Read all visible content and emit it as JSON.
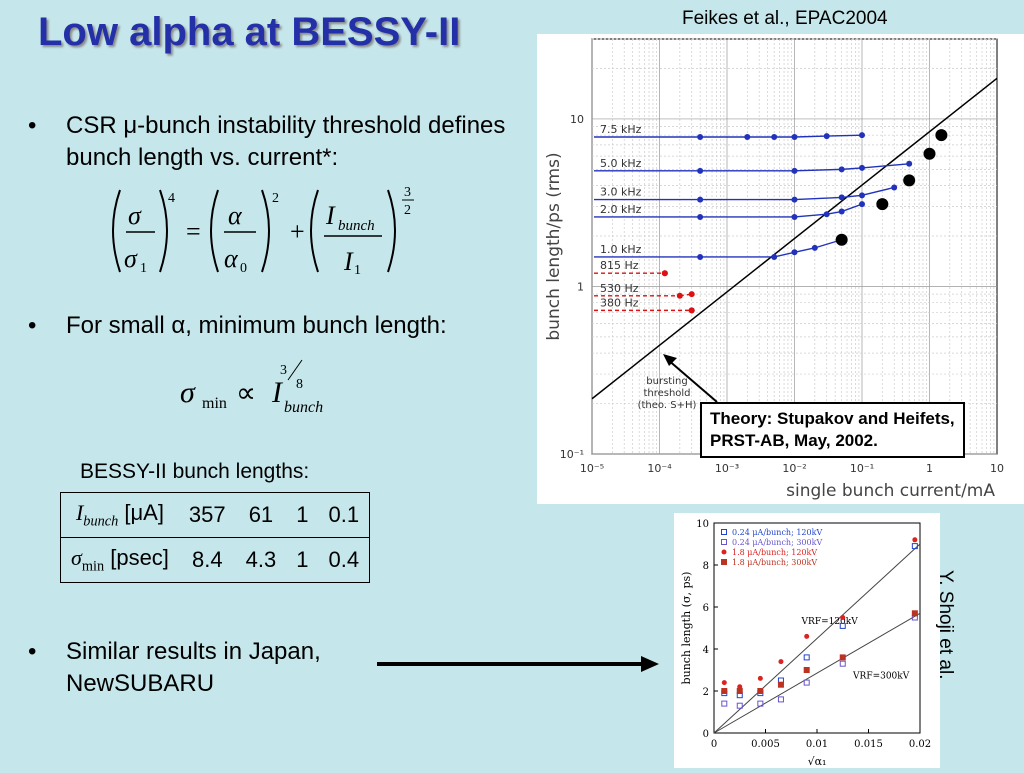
{
  "slide": {
    "title": "Low alpha at BESSY-II",
    "citation_top": "Feikes et al., EPAC2004",
    "bullets": [
      "CSR μ-bunch instability threshold defines bunch length vs. current*:",
      "For small α, minimum bunch length:",
      "Similar results in Japan, NewSUBARU"
    ],
    "table_caption": "BESSY-II bunch lengths:",
    "table": {
      "row1_label": "I_bunch [μA]",
      "row1_values": [
        "357",
        "61",
        "1",
        "0.1"
      ],
      "row2_label": "σ_min [psec]",
      "row2_values": [
        "8.4",
        "4.3",
        "1",
        "0.4"
      ]
    },
    "theory_box": [
      "Theory: Stupakov and Heifets,",
      "PRST-AB, May, 2002."
    ],
    "credit_right": "Y. Shoji et al."
  },
  "chart_data": [
    {
      "type": "scatter",
      "xlabel": "single bunch current/mA",
      "ylabel": "bunch length/ps (rms)",
      "xscale": "log",
      "yscale": "log",
      "xlim": [
        1e-05,
        10
      ],
      "ylim": [
        0.1,
        30
      ],
      "x_ticks": [
        "10⁻⁵",
        "10⁻⁴",
        "10⁻³",
        "10⁻²",
        "10⁻¹",
        "1",
        "10"
      ],
      "y_ticks": [
        "10⁻¹",
        "1",
        "10"
      ],
      "annotation": "bursting threshold (theo. S+H)",
      "series": [
        {
          "name": "7.5 kHz",
          "color": "#2233bb",
          "x": [
            0.0004,
            0.002,
            0.005,
            0.01,
            0.03,
            0.1
          ],
          "y": [
            7.8,
            7.8,
            7.8,
            7.8,
            7.9,
            8.0
          ]
        },
        {
          "name": "5.0 kHz",
          "color": "#2233bb",
          "x": [
            0.0004,
            0.01,
            0.05,
            0.1,
            0.5
          ],
          "y": [
            4.9,
            4.9,
            5.0,
            5.1,
            5.4
          ]
        },
        {
          "name": "3.0 kHz",
          "color": "#2233bb",
          "x": [
            0.0004,
            0.01,
            0.05,
            0.1,
            0.3
          ],
          "y": [
            3.3,
            3.3,
            3.4,
            3.5,
            3.9
          ]
        },
        {
          "name": "2.0 kHz",
          "color": "#2233bb",
          "x": [
            0.0004,
            0.01,
            0.03,
            0.05,
            0.1
          ],
          "y": [
            2.6,
            2.6,
            2.7,
            2.8,
            3.1
          ]
        },
        {
          "name": "1.0 kHz",
          "color": "#2233bb",
          "x": [
            0.0004,
            0.005,
            0.01,
            0.02,
            0.05
          ],
          "y": [
            1.5,
            1.5,
            1.6,
            1.7,
            1.9
          ]
        },
        {
          "name": "815 Hz",
          "color": "#dd1111",
          "x": [
            0.00012,
            0.00012
          ],
          "y": [
            1.2,
            1.2
          ]
        },
        {
          "name": "530 Hz",
          "color": "#dd1111",
          "x": [
            0.0002,
            0.0003
          ],
          "y": [
            0.88,
            0.9
          ]
        },
        {
          "name": "380 Hz",
          "color": "#dd1111",
          "x": [
            0.0003,
            0.0003
          ],
          "y": [
            0.72,
            0.72
          ]
        }
      ],
      "threshold_points": {
        "x": [
          0.05,
          0.2,
          0.5,
          1.0,
          1.5
        ],
        "y": [
          1.9,
          3.1,
          4.3,
          6.2,
          8.0
        ]
      }
    },
    {
      "type": "scatter",
      "xlabel": "√α₁",
      "ylabel": "bunch length (σ, ps)",
      "xlim": [
        0,
        0.02
      ],
      "ylim": [
        0,
        10
      ],
      "x_ticks": [
        "0",
        "0.005",
        "0.01",
        "0.015",
        "0.02"
      ],
      "y_ticks": [
        "0",
        "2",
        "4",
        "6",
        "8",
        "10"
      ],
      "annotations": [
        "VRF=120kV",
        "VRF=300kV"
      ],
      "series": [
        {
          "name": "0.24 μA/bunch; 120kV",
          "color": "#2244cc",
          "marker": "square-open",
          "x": [
            0.001,
            0.0025,
            0.0045,
            0.0065,
            0.009,
            0.0125,
            0.0195
          ],
          "y": [
            1.9,
            1.8,
            1.9,
            2.5,
            3.6,
            5.1,
            8.9
          ]
        },
        {
          "name": "0.24 μA/bunch; 300kV",
          "color": "#6655cc",
          "marker": "square-open",
          "x": [
            0.001,
            0.0025,
            0.0045,
            0.0065,
            0.009,
            0.0125,
            0.0195
          ],
          "y": [
            1.4,
            1.3,
            1.4,
            1.6,
            2.4,
            3.3,
            5.5
          ]
        },
        {
          "name": "1.8 μA/bunch; 120kV",
          "color": "#dd2222",
          "marker": "circle-filled",
          "x": [
            0.001,
            0.0025,
            0.0045,
            0.0065,
            0.009,
            0.0125,
            0.0195
          ],
          "y": [
            2.4,
            2.2,
            2.6,
            3.4,
            4.6,
            5.5,
            9.2
          ]
        },
        {
          "name": "1.8 μA/bunch; 300kV",
          "color": "#bb3322",
          "marker": "square-filled",
          "x": [
            0.001,
            0.0025,
            0.0045,
            0.0065,
            0.009,
            0.0125,
            0.0195
          ],
          "y": [
            2.0,
            2.0,
            2.0,
            2.3,
            3.0,
            3.6,
            5.7
          ]
        }
      ]
    }
  ]
}
